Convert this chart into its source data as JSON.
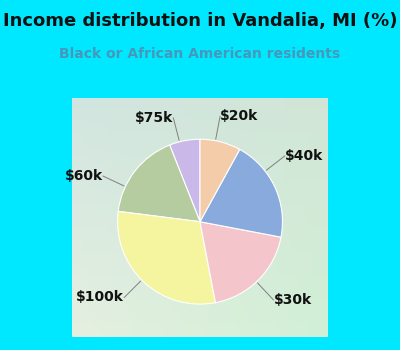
{
  "title": "Income distribution in Vandalia, MI (%)",
  "subtitle": "Black or African American residents",
  "slices": [
    {
      "label": "$20k",
      "value": 6,
      "color": "#c9b8e8"
    },
    {
      "label": "$40k",
      "value": 17,
      "color": "#b5cca0"
    },
    {
      "label": "$30k",
      "value": 30,
      "color": "#f5f5a0"
    },
    {
      "label": "$100k",
      "value": 19,
      "color": "#f5c5cc"
    },
    {
      "label": "$60k",
      "value": 20,
      "color": "#88aadd"
    },
    {
      "label": "$75k",
      "value": 8,
      "color": "#f5ccaa"
    }
  ],
  "outer_bg": "#00e8ff",
  "title_color": "#111111",
  "subtitle_color": "#4499bb",
  "title_fontsize": 13,
  "subtitle_fontsize": 10,
  "startangle": 90,
  "label_fontsize": 10
}
